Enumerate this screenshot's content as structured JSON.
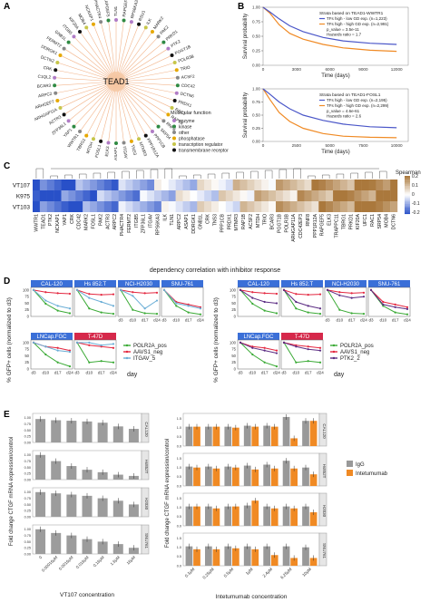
{
  "panel_labels": [
    "A",
    "B",
    "C",
    "D",
    "E"
  ],
  "panelA": {
    "center": "TEAD1",
    "genes": [
      "TLN1",
      "RAPGEF5",
      "PHACTR4",
      "NCKAP1",
      "MOB4",
      "KIF20A",
      "ITGB5",
      "GNB1L",
      "FERMT2",
      "DDRGK1",
      "DCTN2",
      "CRK",
      "C1QL2",
      "BCAR3",
      "ARPC2",
      "ARHGEF7",
      "ARHGAP11A",
      "ACTR3",
      "ZFP36L1",
      "YAP1",
      "WWTR1",
      "TBRG1",
      "MTDH",
      "FOSL1",
      "ELK3",
      "ASAP1",
      "ITGAV",
      "TNS3",
      "MTMR3",
      "PPP1R12A",
      "PPP1CB",
      "SRP54",
      "RNF8",
      "RAP1B",
      "RAC1",
      "PRDX1",
      "DCTN6",
      "CDC42",
      "ACSF2",
      "TRIO",
      "POLR3B",
      "PGGT1B",
      "PTK2",
      "PRKD1",
      "PAK2",
      "MARK2",
      "ILK",
      "RSU1",
      "RPS6KA3",
      "RAPGEF5"
    ],
    "legend_title": "Molecular function",
    "legend_items": [
      {
        "label": "enzyme",
        "color": "#b07cc6"
      },
      {
        "label": "kinase",
        "color": "#2f8a43"
      },
      {
        "label": "other",
        "color": "#888888"
      },
      {
        "label": "phosphatase",
        "color": "#e6a800"
      },
      {
        "label": "transcription regulator",
        "color": "#c6c64a"
      },
      {
        "label": "transmembrane receptor",
        "color": "#111111"
      }
    ]
  },
  "panelB": [
    {
      "legend_title": "Strata based on TEAD1-WWTR1",
      "legend_items": [
        "TFs high - low GD exp. (n=1,223)",
        "TFs high - high GD exp. (n=2,991)"
      ],
      "stats": [
        "p_value = 3.5e-11",
        "Hazards ratio = 1.7"
      ],
      "ylabel": "Survival probability",
      "xlabel": "Time (days)",
      "xticks": [
        "0",
        "3000",
        "6000",
        "9000",
        "12000"
      ],
      "yticks": [
        "0.00",
        "0.25",
        "0.50",
        "0.75",
        "1.00"
      ],
      "chart_data": {
        "type": "line",
        "x_range": [
          0,
          12000
        ],
        "y_range": [
          0,
          1
        ]
      }
    },
    {
      "legend_title": "Strata based on TEAD1-FOSL1",
      "legend_items": [
        "TFs high - low GD exp. (n=2,195)",
        "TFs high - high GD exp. (n=2,299)"
      ],
      "stats": [
        "p_value = 4.6e-61",
        "Hazards ratio = 2.6"
      ],
      "ylabel": "Survival probability",
      "xlabel": "Time (days)",
      "xticks": [
        "0",
        "2500",
        "5000",
        "7500",
        "10000"
      ],
      "yticks": [
        "0.00",
        "0.25",
        "0.50",
        "0.75",
        "1.00"
      ],
      "chart_data": {
        "type": "line",
        "x_range": [
          0,
          10000
        ],
        "y_range": [
          0,
          1
        ]
      }
    }
  ],
  "panelC": {
    "rows": [
      "VT107",
      "K975",
      "VT103"
    ],
    "cols": [
      "WWTR1",
      "TEAD1",
      "PTK2",
      "NCKAP1",
      "YAP1",
      "CRK",
      "CDC42",
      "MARK2",
      "FOSL1",
      "PAK2",
      "ACTR3",
      "ARPC2",
      "PHACTR4",
      "FERMT2",
      "ITGB5",
      "ZFP36L1",
      "ITGAV",
      "RPS6KA3",
      "ILK",
      "TLN1",
      "ARPC2",
      "ASAP1",
      "DDRGK1",
      "GNB1L",
      "CRK",
      "TNS3",
      "PPP1CB",
      "PRDX1",
      "MTMR3",
      "RAP1B",
      "ACSF2",
      "MTDH",
      "TRIO",
      "BCAR3",
      "PGGT1B",
      "POLR3B",
      "ARHGAP11A",
      "CDC42EP3",
      "RNF8",
      "PPP1R12A",
      "RAPGEF5",
      "ELK3",
      "TRAPPC11",
      "TBRG1",
      "PRKD1",
      "KIF20A",
      "UFC1",
      "RAC1",
      "SRP54",
      "MOB4",
      "DCTN6"
    ],
    "legend_title": "Spearman",
    "legend_ticks": [
      "0.2",
      "0.1",
      "0",
      "-0.1",
      "-0.2"
    ],
    "xlabel": "dependency correlation with inhibitor response"
  },
  "panelD": {
    "left": {
      "cells": [
        "CAL-120",
        "Hs 852.T",
        "NCI-H2030",
        "SNU-761",
        "LNCap.FGC",
        "T-47D"
      ],
      "legend": [
        {
          "label": "POLR2A_pos",
          "color": "#3aaa35"
        },
        {
          "label": "AAVS1_neg",
          "color": "#e3263f"
        },
        {
          "label": "ITGAV_5",
          "color": "#6baed6"
        }
      ]
    },
    "right": {
      "cells": [
        "CAL-120",
        "Hs 852.T",
        "NCI-H2030",
        "SNU-761",
        "LNCap.FGC",
        "T-47D"
      ],
      "legend": [
        {
          "label": "POLR2A_pos",
          "color": "#3aaa35"
        },
        {
          "label": "AAVS1_neg",
          "color": "#e3263f"
        },
        {
          "label": "PTK2_2",
          "color": "#5b2c83"
        }
      ]
    },
    "ylabel": "% GFP+ cells (normalized to d3)",
    "xticks": [
      "d3",
      "d10",
      "d17",
      "d24"
    ],
    "day_label": "day",
    "yticks": [
      "100",
      "75",
      "50",
      "25",
      "0"
    ],
    "chart_data": {
      "type": "line",
      "x": [
        "d3",
        "d10",
        "d17",
        "d24"
      ],
      "left": [
        {
          "cell": "CAL-120",
          "series": [
            {
              "name": "POLR2A_pos",
              "values": [
                100,
                48,
                22,
                12
              ]
            },
            {
              "name": "AAVS1_neg",
              "values": [
                100,
                92,
                88,
                86
              ]
            },
            {
              "name": "ITGAV_5",
              "values": [
                100,
                60,
                40,
                30
              ]
            }
          ]
        },
        {
          "cell": "Hs 852.T",
          "series": [
            {
              "name": "POLR2A_pos",
              "values": [
                100,
                30,
                15,
                10
              ]
            },
            {
              "name": "AAVS1_neg",
              "values": [
                100,
                85,
                82,
                84
              ]
            },
            {
              "name": "ITGAV_5",
              "values": [
                100,
                70,
                55,
                40
              ]
            }
          ]
        },
        {
          "cell": "NCI-H2030",
          "series": [
            {
              "name": "POLR2A_pos",
              "values": [
                100,
                25,
                12,
                10
              ]
            },
            {
              "name": "AAVS1_neg",
              "values": [
                100,
                92,
                88,
                90
              ]
            },
            {
              "name": "ITGAV_5",
              "values": [
                100,
                78,
                30,
                60
              ]
            }
          ]
        },
        {
          "cell": "SNU-761",
          "series": [
            {
              "name": "POLR2A_pos",
              "values": [
                100,
                40,
                15,
                8
              ]
            },
            {
              "name": "AAVS1_neg",
              "values": [
                100,
                55,
                45,
                35
              ]
            },
            {
              "name": "ITGAV_5",
              "values": [
                100,
                50,
                40,
                30
              ]
            }
          ]
        },
        {
          "cell": "LNCap.FGC",
          "series": [
            {
              "name": "POLR2A_pos",
              "values": [
                100,
                55,
                25,
                10
              ]
            },
            {
              "name": "AAVS1_neg",
              "values": [
                100,
                85,
                80,
                70
              ]
            },
            {
              "name": "ITGAV_5",
              "values": [
                100,
                85,
                70,
                65
              ]
            }
          ]
        },
        {
          "cell": "T-47D",
          "series": [
            {
              "name": "POLR2A_pos",
              "values": [
                100,
                25,
                30,
                25
              ]
            },
            {
              "name": "AAVS1_neg",
              "values": [
                100,
                90,
                85,
                80
              ]
            },
            {
              "name": "ITGAV_5",
              "values": [
                100,
                100,
                90,
                95
              ]
            }
          ]
        }
      ],
      "right": [
        {
          "cell": "CAL-120",
          "series": [
            {
              "name": "POLR2A_pos",
              "values": [
                100,
                48,
                22,
                12
              ]
            },
            {
              "name": "AAVS1_neg",
              "values": [
                100,
                92,
                88,
                86
              ]
            },
            {
              "name": "PTK2_2",
              "values": [
                100,
                70,
                55,
                50
              ]
            }
          ]
        },
        {
          "cell": "Hs 852.T",
          "series": [
            {
              "name": "POLR2A_pos",
              "values": [
                100,
                30,
                15,
                10
              ]
            },
            {
              "name": "AAVS1_neg",
              "values": [
                100,
                85,
                82,
                84
              ]
            },
            {
              "name": "PTK2_2",
              "values": [
                100,
                55,
                40,
                30
              ]
            }
          ]
        },
        {
          "cell": "NCI-H2030",
          "series": [
            {
              "name": "POLR2A_pos",
              "values": [
                100,
                25,
                12,
                10
              ]
            },
            {
              "name": "AAVS1_neg",
              "values": [
                100,
                92,
                88,
                90
              ]
            },
            {
              "name": "PTK2_2",
              "values": [
                100,
                80,
                70,
                75
              ]
            }
          ]
        },
        {
          "cell": "SNU-761",
          "series": [
            {
              "name": "POLR2A_pos",
              "values": [
                100,
                40,
                15,
                8
              ]
            },
            {
              "name": "AAVS1_neg",
              "values": [
                100,
                55,
                45,
                35
              ]
            },
            {
              "name": "PTK2_2",
              "values": [
                100,
                45,
                35,
                28
              ]
            }
          ]
        },
        {
          "cell": "LNCap.FGC",
          "series": [
            {
              "name": "POLR2A_pos",
              "values": [
                100,
                55,
                25,
                10
              ]
            },
            {
              "name": "AAVS1_neg",
              "values": [
                100,
                85,
                80,
                70
              ]
            },
            {
              "name": "PTK2_2",
              "values": [
                100,
                80,
                70,
                60
              ]
            }
          ]
        },
        {
          "cell": "T-47D",
          "series": [
            {
              "name": "POLR2A_pos",
              "values": [
                100,
                25,
                30,
                25
              ]
            },
            {
              "name": "AAVS1_neg",
              "values": [
                100,
                90,
                85,
                80
              ]
            },
            {
              "name": "PTK2_2",
              "values": [
                100,
                85,
                75,
                70
              ]
            }
          ]
        }
      ]
    }
  },
  "panelE": {
    "left_ylabel": "Fold change CTGF mRNA expression/control",
    "left_xlabel": "VT107 concentration",
    "left_xticks": [
      "0",
      "0.00016μM",
      "0.0016μM",
      "0.016μM",
      "0.16μM",
      "1.6μM",
      "16μM"
    ],
    "right_ylabel": "Fold change CTGF mRNA expression/control",
    "right_xlabel": "Intetumumab concentration",
    "right_xticks": [
      "0.1μM",
      "0.25μM",
      "0.5μM",
      "1μM",
      "2.4μM",
      "6.25μM",
      "10μM"
    ],
    "cells": [
      "CAL120",
      "Hs852T",
      "H2030",
      "SNU761"
    ],
    "legend": [
      {
        "label": "IgG",
        "color": "#999999"
      },
      {
        "label": "Intetumumab",
        "color": "#f08a24"
      }
    ],
    "left_yticks": [
      "0.00",
      "0.25",
      "0.50",
      "0.75",
      "1.00"
    ],
    "right_yticks": [
      "0.0",
      "0.5",
      "1.0",
      "1.5"
    ],
    "chart_data": {
      "type": "bar",
      "left": [
        {
          "cell": "CAL120",
          "values": [
            0.95,
            0.9,
            0.88,
            0.85,
            0.8,
            0.65,
            0.55
          ]
        },
        {
          "cell": "Hs852T",
          "values": [
            1.0,
            0.75,
            0.55,
            0.4,
            0.3,
            0.2,
            0.15
          ]
        },
        {
          "cell": "H2030",
          "values": [
            1.0,
            0.95,
            0.9,
            0.85,
            0.75,
            0.65,
            0.5
          ]
        },
        {
          "cell": "SNU761",
          "values": [
            1.0,
            0.85,
            0.75,
            0.6,
            0.5,
            0.4,
            0.25
          ]
        }
      ],
      "right": [
        {
          "cell": "CAL120",
          "IgG": [
            1.0,
            1.0,
            1.0,
            1.05,
            1.05,
            1.5,
            1.3
          ],
          "Intetumumab": [
            1.0,
            1.0,
            0.95,
            1.0,
            1.0,
            0.4,
            1.3
          ]
        },
        {
          "cell": "Hs852T",
          "IgG": [
            1.0,
            1.0,
            1.0,
            1.05,
            1.1,
            1.3,
            0.95
          ],
          "Intetumumab": [
            0.95,
            0.9,
            0.95,
            0.85,
            0.9,
            0.9,
            0.6
          ]
        },
        {
          "cell": "H2030",
          "IgG": [
            1.0,
            1.0,
            1.0,
            1.05,
            1.0,
            1.0,
            1.0
          ],
          "Intetumumab": [
            1.0,
            0.9,
            1.0,
            1.3,
            0.9,
            0.9,
            0.7
          ]
        },
        {
          "cell": "SNU761",
          "IgG": [
            1.0,
            1.0,
            1.0,
            1.0,
            1.0,
            1.0,
            0.95
          ],
          "Intetumumab": [
            0.85,
            0.85,
            0.9,
            0.85,
            0.55,
            0.4,
            0.4
          ]
        }
      ]
    }
  }
}
